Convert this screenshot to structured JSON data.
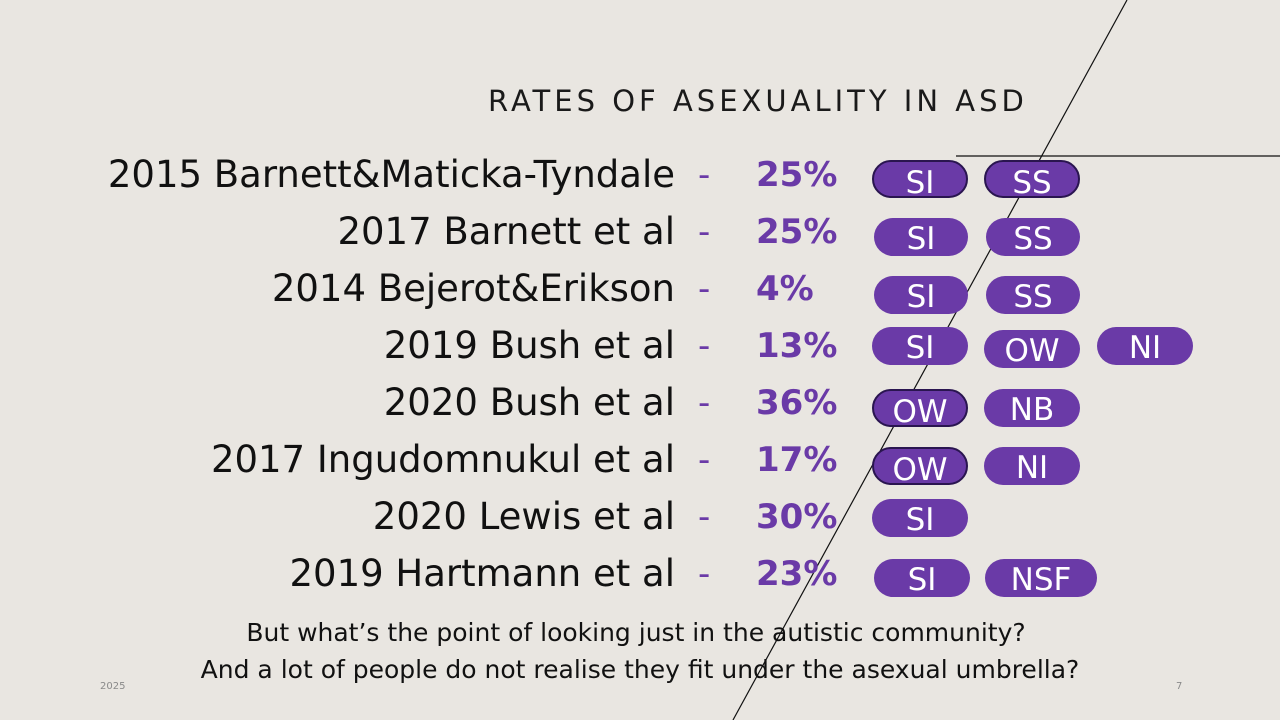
{
  "slide": {
    "title": "RATES OF ASEXUALITY IN ASD",
    "date": "2025",
    "page_number": "7"
  },
  "rows": [
    {
      "study": "2015 Barnett&Maticka-Tyndale",
      "dash": "-",
      "rate": "25%",
      "tags": [
        "SI",
        "SS"
      ]
    },
    {
      "study": "2017 Barnett et al",
      "dash": "-",
      "rate": "25%",
      "tags": [
        "SI",
        "SS"
      ]
    },
    {
      "study": "2014 Bejerot&Erikson",
      "dash": "-",
      "rate": "4%",
      "tags": [
        "SI",
        "SS"
      ]
    },
    {
      "study": "2019 Bush et al",
      "dash": "-",
      "rate": "13%",
      "tags": [
        "SI",
        "OW",
        "NI"
      ]
    },
    {
      "study": "2020 Bush et al",
      "dash": "-",
      "rate": "36%",
      "tags": [
        "OW",
        "NB"
      ]
    },
    {
      "study": "2017 Ingudomnukul et al",
      "dash": "-",
      "rate": "17%",
      "tags": [
        "OW",
        "NI"
      ]
    },
    {
      "study": "2020 Lewis et al",
      "dash": "-",
      "rate": "30%",
      "tags": [
        "SI"
      ]
    },
    {
      "study": "2019 Hartmann et al",
      "dash": "-",
      "rate": "23%",
      "tags": [
        "SI",
        "NSF"
      ]
    }
  ],
  "footer": {
    "line1": "But what’s the point of looking just in the autistic community?",
    "line2": "And a lot of people do not realise they fit under the asexual umbrella?"
  },
  "colors": {
    "background": "#e9e6e1",
    "accent": "#6a3aa7",
    "text": "#111111"
  }
}
